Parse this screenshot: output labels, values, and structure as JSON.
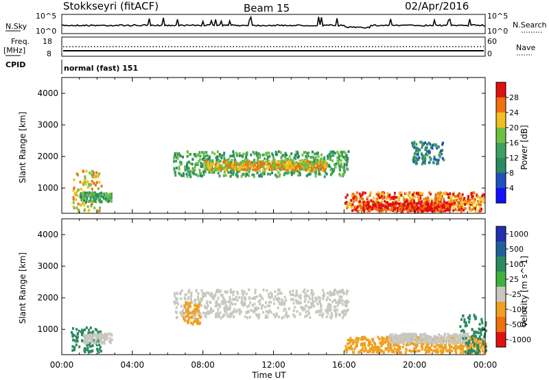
{
  "header": {
    "station": "Stokkseyri (fitACF)",
    "beam": "Beam 15",
    "date": "02/Apr/2016"
  },
  "status_panels": {
    "nsky_label": "N.Sky",
    "nsky_top": "10^5",
    "nsky_bottom": "10^0",
    "nsearch_label": "N.Search",
    "nsearch_top": "10^5",
    "nsearch_bottom": "10^0",
    "freq_label": "Freq.",
    "freq_unit": "[MHz]",
    "freq_top": "18",
    "freq_bottom": "8",
    "nave_label": "Nave",
    "nave_top": "60",
    "nave_bottom": "0",
    "cpid_label": "CPID",
    "cpid_value": "normal (fast) 151"
  },
  "colors": {
    "sky_trace": "#000000",
    "ground_scatter": "#c8c8c0",
    "power_scale": [
      "#1010ff",
      "#2050c0",
      "#2a8a60",
      "#3ea060",
      "#70c040",
      "#f0c020",
      "#f07010",
      "#e01010"
    ],
    "velocity_scale": [
      "#2030b0",
      "#20609a",
      "#2a8a60",
      "#40b040",
      "#c8c8c0",
      "#f0a020",
      "#f07010",
      "#e01010"
    ]
  },
  "chart_data": [
    {
      "type": "heatmap",
      "name": "power",
      "ylabel": "Slant Range [km]",
      "xlabel": "",
      "xlim": [
        "00:00",
        "24:00"
      ],
      "ylim": [
        200,
        4500
      ],
      "x_ticks": [
        "00:00",
        "04:00",
        "08:00",
        "12:00",
        "16:00",
        "20:00",
        "00:00"
      ],
      "y_ticks": [
        1000,
        2000,
        3000,
        4000
      ],
      "colorbar_label": "Power [dB]",
      "colorbar_ticks": [
        "4",
        "8",
        "12",
        "16",
        "20",
        "24",
        "28"
      ],
      "colorbar_range": [
        0,
        30
      ],
      "regions": [
        {
          "t0": 0.6,
          "t1": 2.2,
          "r0": 300,
          "r1": 1600,
          "level": 20
        },
        {
          "t0": 1.0,
          "t1": 2.8,
          "r0": 600,
          "r1": 900,
          "level": 14
        },
        {
          "t0": 6.3,
          "t1": 16.2,
          "r0": 1400,
          "r1": 2200,
          "level": 14
        },
        {
          "t0": 8.0,
          "t1": 15.0,
          "r0": 1600,
          "r1": 1900,
          "level": 22
        },
        {
          "t0": 16.0,
          "t1": 24.0,
          "r0": 300,
          "r1": 900,
          "level": 24
        },
        {
          "t0": 17.0,
          "t1": 22.0,
          "r0": 300,
          "r1": 600,
          "level": 28
        },
        {
          "t0": 19.8,
          "t1": 21.6,
          "r0": 1800,
          "r1": 2500,
          "level": 10
        }
      ]
    },
    {
      "type": "heatmap",
      "name": "velocity",
      "ylabel": "Slant Range [km]",
      "xlabel": "Time UT",
      "xlim": [
        "00:00",
        "24:00"
      ],
      "ylim": [
        200,
        4500
      ],
      "x_ticks": [
        "00:00",
        "04:00",
        "08:00",
        "12:00",
        "16:00",
        "20:00",
        "00:00"
      ],
      "y_ticks": [
        1000,
        2000,
        3000,
        4000
      ],
      "colorbar_label": "Velocity [m s^-1]",
      "colorbar_ticks": [
        "1000",
        "500",
        "100",
        "25",
        "-25",
        "-100",
        "-500",
        "-1000"
      ],
      "regions": [
        {
          "t0": 0.5,
          "t1": 2.2,
          "r0": 300,
          "r1": 1100,
          "vel": 200
        },
        {
          "t0": 1.2,
          "t1": 2.8,
          "r0": 600,
          "r1": 900,
          "vel": 0
        },
        {
          "t0": 6.3,
          "t1": 16.2,
          "r0": 1400,
          "r1": 2300,
          "vel": 0
        },
        {
          "t0": 6.8,
          "t1": 7.8,
          "r0": 1200,
          "r1": 1900,
          "vel": -300
        },
        {
          "t0": 16.0,
          "t1": 24.0,
          "r0": 300,
          "r1": 800,
          "vel": -300
        },
        {
          "t0": 18.5,
          "t1": 23.0,
          "r0": 600,
          "r1": 900,
          "vel": 0
        },
        {
          "t0": 22.5,
          "t1": 24.0,
          "r0": 300,
          "r1": 1500,
          "vel": 300
        }
      ]
    }
  ]
}
